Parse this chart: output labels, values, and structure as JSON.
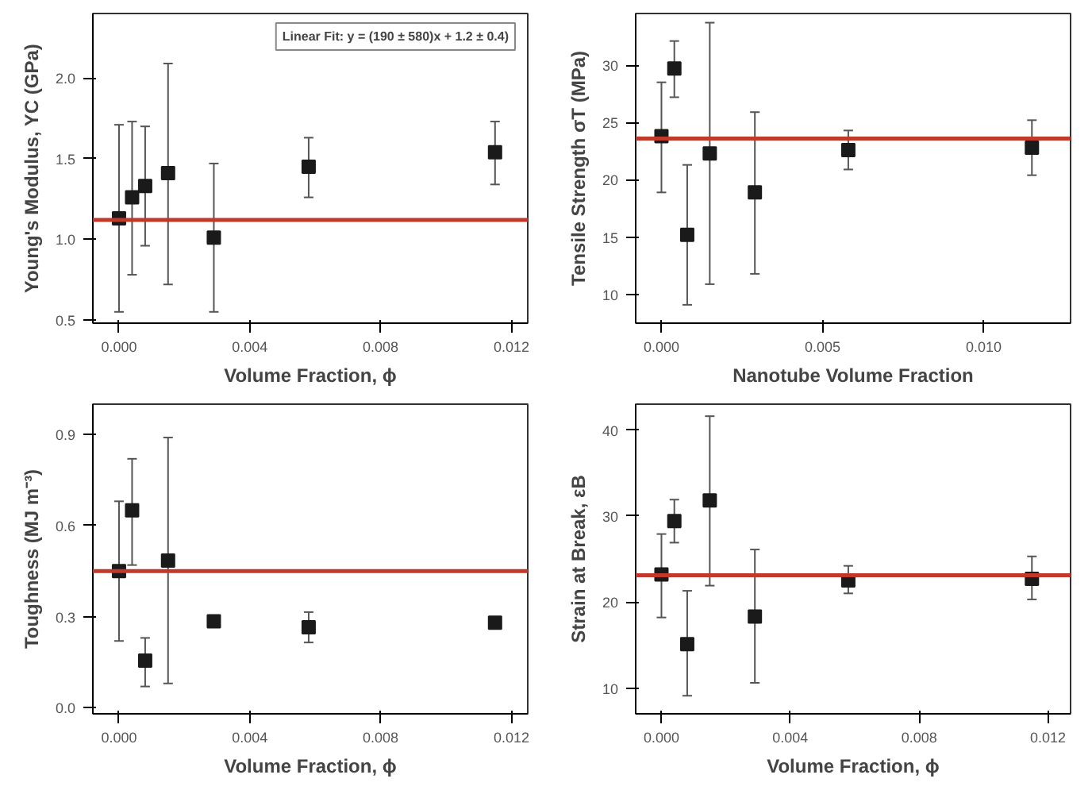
{
  "chart_data": [
    {
      "type": "scatter",
      "xlabel": "Volume Fraction, ϕ",
      "ylabel": "Young's Modulus, YC (GPa)",
      "annotations": [
        "Linear Fit: y = (190 ± 580)x + 1.2 ± 0.4)"
      ],
      "marker": "square",
      "grid": false,
      "x": [
        0,
        0.0004,
        0.0008,
        0.0015,
        0.0029,
        0.0058,
        0.0115
      ],
      "series": [
        {
          "color": "#1a1a1a",
          "values": [
            1.13,
            1.26,
            1.33,
            1.41,
            1.01,
            1.45,
            1.54
          ],
          "errors": [
            [
              0.55,
              1.71
            ],
            [
              0.78,
              1.73
            ],
            [
              0.96,
              1.7
            ],
            [
              0.72,
              2.09
            ],
            [
              0.55,
              1.47
            ],
            [
              1.26,
              1.63
            ],
            [
              1.34,
              1.73
            ]
          ]
        }
      ],
      "ref_lines": [
        {
          "axis": "y",
          "value": 1.12,
          "label": null,
          "color": "#c0392b"
        }
      ],
      "xlim": [
        -0.0008,
        0.0125
      ],
      "ylim": [
        0.48,
        2.4
      ],
      "xticks": [
        {
          "value": 0,
          "label": "0.000"
        },
        {
          "value": 0.004,
          "label": "0.004"
        },
        {
          "value": 0.008,
          "label": "0.008"
        },
        {
          "value": 0.012,
          "label": "0.012"
        }
      ],
      "yticks": [
        {
          "value": 0.5,
          "label": "0.5"
        },
        {
          "value": 1.0,
          "label": "1.0"
        },
        {
          "value": 1.5,
          "label": "1.5"
        },
        {
          "value": 2.0,
          "label": "2.0"
        }
      ]
    },
    {
      "type": "scatter",
      "xlabel": "Nanotube Volume Fraction",
      "ylabel": "Tensile Strength σT (MPa)",
      "marker": "square",
      "grid": false,
      "x": [
        0,
        0.0004,
        0.0008,
        0.0015,
        0.0029,
        0.0058,
        0.0115
      ],
      "series": [
        {
          "color": "#1a1a1a",
          "values": [
            23.8,
            29.7,
            15.2,
            22.3,
            18.9,
            22.6,
            22.8
          ],
          "errors": [
            [
              18.9,
              28.5
            ],
            [
              27.2,
              32.1
            ],
            [
              9.1,
              21.3
            ],
            [
              10.9,
              33.7
            ],
            [
              11.8,
              25.9
            ],
            [
              20.9,
              24.3
            ],
            [
              20.4,
              25.2
            ]
          ]
        }
      ],
      "ref_lines": [
        {
          "axis": "y",
          "value": 23.6,
          "label": null,
          "color": "#c0392b"
        }
      ],
      "xlim": [
        -0.0008,
        0.0127
      ],
      "ylim": [
        7.5,
        34.5
      ],
      "xticks": [
        {
          "value": 0,
          "label": "0.000"
        },
        {
          "value": 0.005,
          "label": "0.005"
        },
        {
          "value": 0.01,
          "label": "0.010"
        }
      ],
      "yticks": [
        10,
        15,
        20,
        25,
        30
      ]
    },
    {
      "type": "scatter",
      "xlabel": "Volume Fraction, ϕ",
      "ylabel": "Toughness (MJ m⁻³)",
      "marker": "square",
      "grid": false,
      "x": [
        0,
        0.0004,
        0.0008,
        0.0015,
        0.0029,
        0.0058,
        0.0115
      ],
      "series": [
        {
          "color": "#1a1a1a",
          "values": [
            0.45,
            0.65,
            0.155,
            0.485,
            0.285,
            0.265,
            0.28
          ],
          "errors": [
            [
              0.22,
              0.68
            ],
            [
              0.47,
              0.82
            ],
            [
              0.07,
              0.23
            ],
            [
              0.08,
              0.89
            ],
            null,
            [
              0.215,
              0.315
            ],
            null
          ]
        }
      ],
      "ref_lines": [
        {
          "axis": "y",
          "value": 0.45,
          "label": null,
          "color": "#c0392b"
        }
      ],
      "xlim": [
        -0.0008,
        0.0125
      ],
      "ylim": [
        -0.02,
        1.0
      ],
      "xticks": [
        {
          "value": 0,
          "label": "0.000"
        },
        {
          "value": 0.004,
          "label": "0.004"
        },
        {
          "value": 0.008,
          "label": "0.008"
        },
        {
          "value": 0.012,
          "label": "0.012"
        }
      ],
      "yticks": [
        {
          "value": 0.0,
          "label": "0.0"
        },
        {
          "value": 0.3,
          "label": "0.3"
        },
        {
          "value": 0.6,
          "label": "0.6"
        },
        {
          "value": 0.9,
          "label": "0.9"
        }
      ]
    },
    {
      "type": "scatter",
      "xlabel": "Volume Fraction, ϕ",
      "ylabel": "Strain at Break, εB",
      "marker": "square",
      "grid": false,
      "x": [
        0,
        0.0004,
        0.0008,
        0.0015,
        0.0029,
        0.0058,
        0.0115
      ],
      "series": [
        {
          "color": "#1a1a1a",
          "values": [
            23.2,
            29.4,
            15.1,
            31.8,
            18.3,
            22.5,
            22.7
          ],
          "errors": [
            [
              18.2,
              27.9
            ],
            [
              26.9,
              31.9
            ],
            [
              9.1,
              21.3
            ],
            [
              21.9,
              41.6
            ],
            [
              10.6,
              26.1
            ],
            [
              21.0,
              24.2
            ],
            [
              20.3,
              25.3
            ]
          ]
        }
      ],
      "ref_lines": [
        {
          "axis": "y",
          "value": 23.1,
          "label": null,
          "color": "#c0392b"
        }
      ],
      "xlim": [
        -0.0008,
        0.0127
      ],
      "ylim": [
        7,
        43
      ],
      "xticks": [
        {
          "value": 0,
          "label": "0.000"
        },
        {
          "value": 0.004,
          "label": "0.004"
        },
        {
          "value": 0.008,
          "label": "0.008"
        },
        {
          "value": 0.012,
          "label": "0.012"
        }
      ],
      "yticks": [
        10,
        20,
        30,
        40
      ]
    }
  ]
}
